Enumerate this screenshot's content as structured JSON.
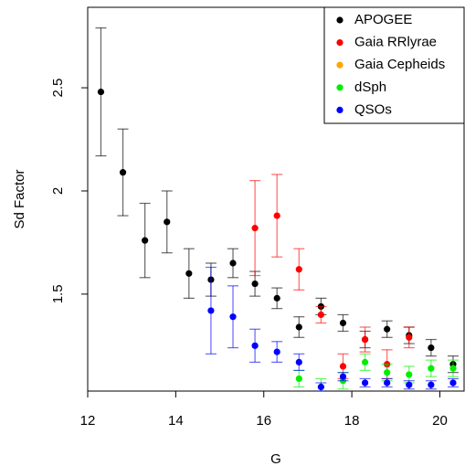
{
  "chart_data": {
    "type": "scatter",
    "x_label": "G",
    "y_label": "Sd Factor",
    "xlim": [
      12,
      20.55
    ],
    "ylim": [
      1.03,
      2.89
    ],
    "xticks": [
      12,
      14,
      16,
      18,
      20
    ],
    "yticks": [
      1.5,
      2.0,
      2.5
    ],
    "legend": "top-right",
    "series": [
      {
        "name": "APOGEE",
        "color": "#000000",
        "x": [
          12.3,
          12.8,
          13.3,
          13.8,
          14.3,
          14.8,
          15.3,
          15.8,
          16.3,
          16.8,
          17.3,
          17.8,
          18.3,
          18.8,
          19.3,
          19.8,
          20.3
        ],
        "values": [
          2.48,
          2.09,
          1.76,
          1.85,
          1.6,
          1.57,
          1.65,
          1.55,
          1.48,
          1.34,
          1.44,
          1.36,
          1.28,
          1.33,
          1.3,
          1.24,
          1.16
        ],
        "errors": [
          0.31,
          0.21,
          0.18,
          0.15,
          0.12,
          0.08,
          0.07,
          0.06,
          0.05,
          0.05,
          0.04,
          0.04,
          0.04,
          0.04,
          0.04,
          0.04,
          0.04
        ]
      },
      {
        "name": "Gaia RRlyrae",
        "color": "#ff0000",
        "x": [
          15.8,
          16.3,
          16.8,
          17.3,
          17.8,
          18.3,
          18.8,
          19.3
        ],
        "values": [
          1.82,
          1.88,
          1.62,
          1.4,
          1.15,
          1.28,
          1.16,
          1.29
        ],
        "errors": [
          0.23,
          0.2,
          0.1,
          0.04,
          0.06,
          0.06,
          0.07,
          0.05
        ]
      },
      {
        "name": "Gaia Cepheids",
        "color": "#ffa500",
        "x": [],
        "values": [],
        "errors": []
      },
      {
        "name": "dSph",
        "color": "#00ee00",
        "x": [
          16.8,
          17.3,
          17.8,
          18.3,
          18.8,
          19.3,
          19.8,
          20.3
        ],
        "values": [
          1.09,
          1.05,
          1.08,
          1.17,
          1.12,
          1.11,
          1.14,
          1.14
        ],
        "errors": [
          0.04,
          0.04,
          0.04,
          0.04,
          0.04,
          0.04,
          0.04,
          0.04
        ]
      },
      {
        "name": "QSOs",
        "color": "#0000ff",
        "x": [
          14.8,
          15.3,
          15.8,
          16.3,
          16.8,
          17.3,
          17.8,
          18.3,
          18.8,
          19.3,
          19.8,
          20.3
        ],
        "values": [
          1.42,
          1.39,
          1.25,
          1.22,
          1.17,
          1.05,
          1.1,
          1.07,
          1.07,
          1.06,
          1.06,
          1.07
        ],
        "errors": [
          0.21,
          0.15,
          0.08,
          0.05,
          0.04,
          0.02,
          0.02,
          0.02,
          0.02,
          0.02,
          0.02,
          0.02
        ]
      }
    ]
  }
}
